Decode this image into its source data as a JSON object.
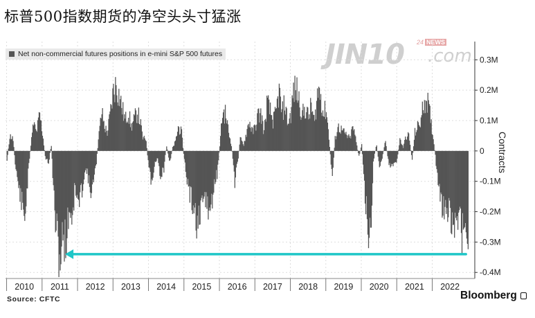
{
  "headline": "标普500指数期货的净空头头寸猛涨",
  "footer": {
    "source": "Source:  CFTC",
    "brand": "Bloomberg"
  },
  "watermark": {
    "name": "JIN10",
    "domain": ".com",
    "tag_number": "24",
    "tag_word": "NEWS"
  },
  "colors": {
    "bars": "#555555",
    "arrow": "#1fc6c7",
    "grid": "#dddddd",
    "legend_bg": "#e9e9e9"
  },
  "chart_data": {
    "type": "bar",
    "title": "",
    "legend": [
      "Net non-commercial futures positions in e-mini S&P 500 futures"
    ],
    "legend_position": "top-left",
    "ylabel": "Contracts",
    "y_axis_side": "right",
    "ylim": [
      -420000,
      360000
    ],
    "yticks": [
      -400000,
      -300000,
      -200000,
      -100000,
      0,
      100000,
      200000,
      300000
    ],
    "ytick_labels": [
      "-0.4M",
      "-0.3M",
      "-0.2M",
      "-0.1M",
      "0",
      "0.1M",
      "0.2M",
      "0.3M"
    ],
    "x_labels": [
      "2010",
      "2011",
      "2012",
      "2013",
      "2014",
      "2015",
      "2016",
      "2017",
      "2018",
      "2019",
      "2020",
      "2021",
      "2022"
    ],
    "xlim": [
      2009.97,
      2023.2
    ],
    "grid": true,
    "annotation": {
      "type": "arrow",
      "color": "#1fc6c7",
      "y": -340000,
      "from_x": 2022.95,
      "to_x": 2011.65
    },
    "series": [
      {
        "name": "Net non-commercial futures positions in e-mini S&P 500 futures",
        "x": [
          2010.0,
          2010.08,
          2010.17,
          2010.25,
          2010.33,
          2010.42,
          2010.5,
          2010.58,
          2010.67,
          2010.75,
          2010.83,
          2010.92,
          2011.0,
          2011.08,
          2011.17,
          2011.25,
          2011.33,
          2011.42,
          2011.5,
          2011.58,
          2011.67,
          2011.75,
          2011.83,
          2011.92,
          2012.0,
          2012.08,
          2012.17,
          2012.25,
          2012.33,
          2012.42,
          2012.5,
          2012.58,
          2012.67,
          2012.75,
          2012.83,
          2012.92,
          2013.0,
          2013.08,
          2013.17,
          2013.25,
          2013.33,
          2013.42,
          2013.5,
          2013.58,
          2013.67,
          2013.75,
          2013.83,
          2013.92,
          2014.0,
          2014.08,
          2014.17,
          2014.25,
          2014.33,
          2014.42,
          2014.5,
          2014.58,
          2014.67,
          2014.75,
          2014.83,
          2014.92,
          2015.0,
          2015.08,
          2015.17,
          2015.25,
          2015.33,
          2015.42,
          2015.5,
          2015.58,
          2015.67,
          2015.75,
          2015.83,
          2015.92,
          2016.0,
          2016.08,
          2016.17,
          2016.25,
          2016.33,
          2016.42,
          2016.5,
          2016.58,
          2016.67,
          2016.75,
          2016.83,
          2016.92,
          2017.0,
          2017.08,
          2017.17,
          2017.25,
          2017.33,
          2017.42,
          2017.5,
          2017.58,
          2017.67,
          2017.75,
          2017.83,
          2017.92,
          2018.0,
          2018.08,
          2018.17,
          2018.25,
          2018.33,
          2018.42,
          2018.5,
          2018.58,
          2018.67,
          2018.75,
          2018.83,
          2018.92,
          2019.0,
          2019.08,
          2019.17,
          2019.25,
          2019.33,
          2019.42,
          2019.5,
          2019.58,
          2019.67,
          2019.75,
          2019.83,
          2019.92,
          2020.0,
          2020.08,
          2020.17,
          2020.25,
          2020.33,
          2020.42,
          2020.5,
          2020.58,
          2020.67,
          2020.75,
          2020.83,
          2020.92,
          2021.0,
          2021.08,
          2021.17,
          2021.25,
          2021.33,
          2021.42,
          2021.5,
          2021.58,
          2021.67,
          2021.75,
          2021.83,
          2021.92,
          2022.0,
          2022.08,
          2022.17,
          2022.25,
          2022.33,
          2022.42,
          2022.5,
          2022.58,
          2022.67,
          2022.75,
          2022.83,
          2022.92,
          2023.0
        ],
        "values": [
          -30000,
          50000,
          40000,
          -60000,
          -120000,
          -180000,
          -220000,
          -100000,
          20000,
          90000,
          60000,
          120000,
          60000,
          -20000,
          -40000,
          20000,
          -180000,
          -300000,
          -360000,
          -280000,
          -300000,
          -190000,
          -220000,
          -120000,
          -180000,
          -150000,
          -80000,
          -60000,
          -130000,
          -120000,
          -60000,
          40000,
          130000,
          80000,
          60000,
          130000,
          200000,
          220000,
          180000,
          140000,
          100000,
          130000,
          80000,
          100000,
          130000,
          100000,
          40000,
          40000,
          -60000,
          -120000,
          -40000,
          -20000,
          -90000,
          -60000,
          20000,
          -40000,
          10000,
          30000,
          80000,
          60000,
          -30000,
          -100000,
          -160000,
          -180000,
          -230000,
          -250000,
          -200000,
          -140000,
          -200000,
          -200000,
          -120000,
          -80000,
          20000,
          130000,
          120000,
          60000,
          20000,
          -100000,
          -40000,
          40000,
          20000,
          60000,
          100000,
          60000,
          80000,
          120000,
          120000,
          60000,
          160000,
          130000,
          100000,
          120000,
          200000,
          120000,
          160000,
          90000,
          120000,
          200000,
          200000,
          160000,
          120000,
          140000,
          110000,
          150000,
          90000,
          190000,
          200000,
          120000,
          140000,
          40000,
          -90000,
          40000,
          80000,
          70000,
          60000,
          50000,
          40000,
          80000,
          40000,
          -20000,
          20000,
          -120000,
          -250000,
          -280000,
          -30000,
          20000,
          -60000,
          -20000,
          30000,
          -30000,
          -60000,
          -40000,
          -30000,
          40000,
          10000,
          50000,
          50000,
          -30000,
          60000,
          80000,
          100000,
          160000,
          180000,
          120000,
          60000,
          -20000,
          -140000,
          -170000,
          -200000,
          -220000,
          -210000,
          -240000,
          -250000,
          -220000,
          -270000,
          -200000,
          -340000
        ]
      }
    ]
  }
}
